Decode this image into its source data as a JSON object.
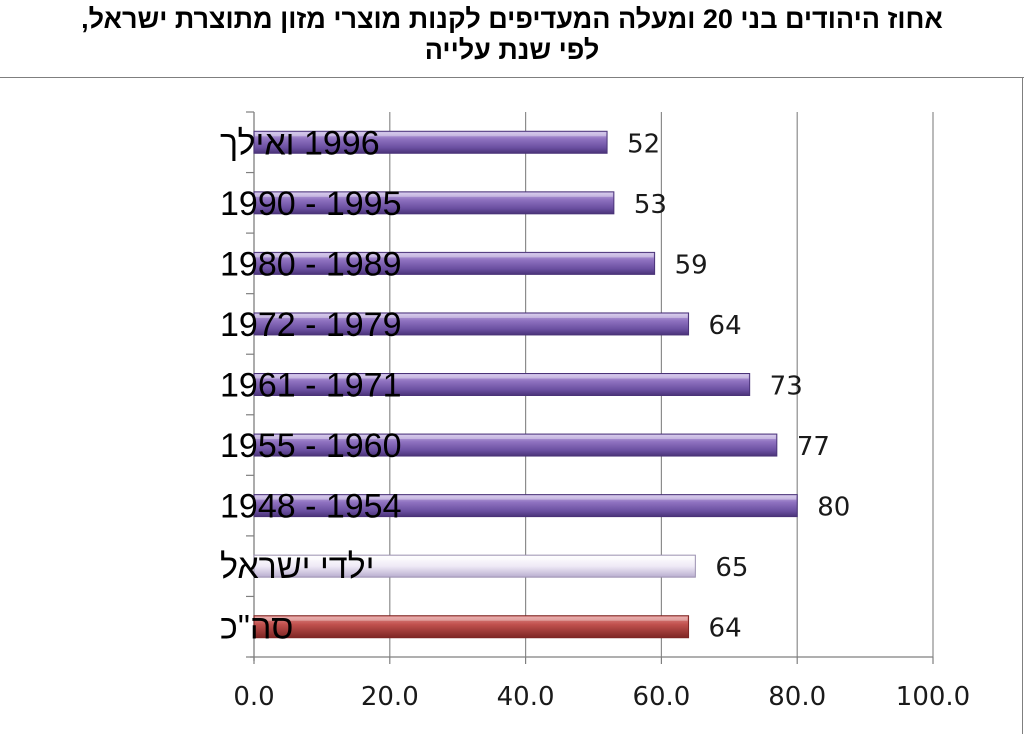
{
  "title": {
    "line1": "אחוז היהודים בני 20 ומעלה המעדיפים לקנות מוצרי מזון מתוצרת ישראל,",
    "line2": "לפי שנת עלייה"
  },
  "chart_data": {
    "type": "bar",
    "orientation": "horizontal",
    "categories": [
      "1996 ואילך",
      "1995 - 1990",
      "1989 - 1980",
      "1979 - 1972",
      "1971 - 1961",
      "1960 - 1955",
      "1954 - 1948",
      "ילדי ישראל",
      "סה\"כ"
    ],
    "values": [
      52,
      53,
      59,
      64,
      73,
      77,
      80,
      65,
      64
    ],
    "value_labels": [
      "52",
      "53",
      "59",
      "64",
      "73",
      "77",
      "80",
      "65",
      "64"
    ],
    "bar_colors": [
      "#8064a2",
      "#8064a2",
      "#8064a2",
      "#8064a2",
      "#8064a2",
      "#8064a2",
      "#8064a2",
      "#e8e4f0",
      "#c0504d"
    ],
    "xlim": [
      0,
      100
    ],
    "xticks": [
      0,
      20,
      40,
      60,
      80,
      100
    ],
    "xtick_labels": [
      "0.0",
      "20.0",
      "40.0",
      "60.0",
      "80.0",
      "100.0"
    ],
    "grid": "vertical",
    "legend": "none"
  }
}
